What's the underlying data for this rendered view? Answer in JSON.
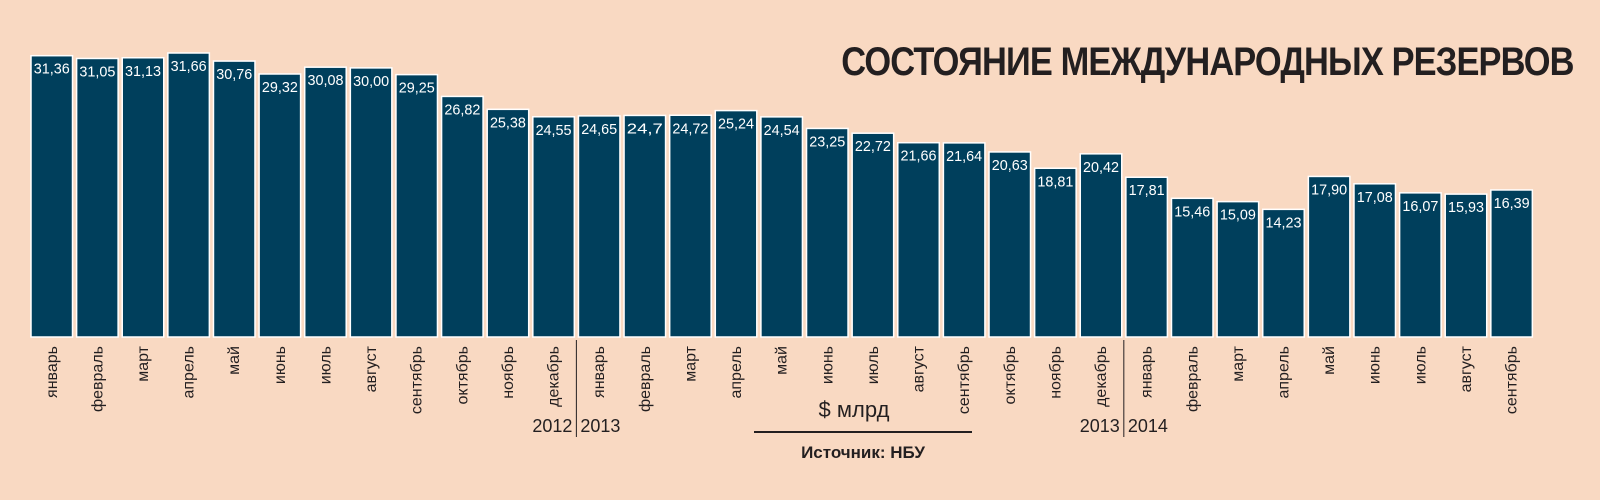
{
  "title": "СОСТОЯНИЕ МЕЖДУНАРОДНЫХ РЕЗЕРВОВ",
  "unit_label": "$ млрд",
  "source": "Источник: НБУ",
  "colors": {
    "background": "#f9d9c2",
    "bar": "#003f5c",
    "bar_border": "#ffffff",
    "value_text": "#ffffff",
    "text": "#231f20"
  },
  "chart_data": {
    "type": "bar",
    "title": "СОСТОЯНИЕ МЕЖДУНАРОДНЫХ РЕЗЕРВОВ",
    "ylabel": "$ млрд",
    "ylim": [
      0,
      35
    ],
    "grid": false,
    "categories": [
      "январь",
      "февраль",
      "март",
      "апрель",
      "май",
      "июнь",
      "июль",
      "август",
      "сентябрь",
      "октябрь",
      "ноябрь",
      "декабрь",
      "январь",
      "февраль",
      "март",
      "апрель",
      "май",
      "июнь",
      "июль",
      "август",
      "сентябрь",
      "октябрь",
      "ноябрь",
      "декабрь",
      "январь",
      "февраль",
      "март",
      "апрель",
      "май",
      "июнь",
      "июль",
      "август",
      "сентябрь"
    ],
    "values": [
      31.36,
      31.05,
      31.13,
      31.66,
      30.76,
      29.32,
      30.08,
      30.0,
      29.25,
      26.82,
      25.38,
      24.55,
      24.65,
      24.7,
      24.72,
      25.24,
      24.54,
      23.25,
      22.72,
      21.66,
      21.64,
      20.63,
      18.81,
      20.42,
      17.81,
      15.46,
      15.09,
      14.23,
      17.9,
      17.08,
      16.07,
      15.93,
      16.39
    ],
    "value_labels": [
      "31,36",
      "31,05",
      "31,13",
      "31,66",
      "30,76",
      "29,32",
      "30,08",
      "30,00",
      "29,25",
      "26,82",
      "25,38",
      "24,55",
      "24,65",
      "24,7",
      "24,72",
      "25,24",
      "24,54",
      "23,25",
      "22,72",
      "21,66",
      "21,64",
      "20,63",
      "18,81",
      "20,42",
      "17,81",
      "15,46",
      "15,09",
      "14,23",
      "17,90",
      "17,08",
      "16,07",
      "15,93",
      "16,39"
    ],
    "year_dividers": [
      {
        "after_index": 11,
        "left_label": "2012",
        "right_label": "2013"
      },
      {
        "after_index": 23,
        "left_label": "2013",
        "right_label": "2014"
      }
    ]
  }
}
